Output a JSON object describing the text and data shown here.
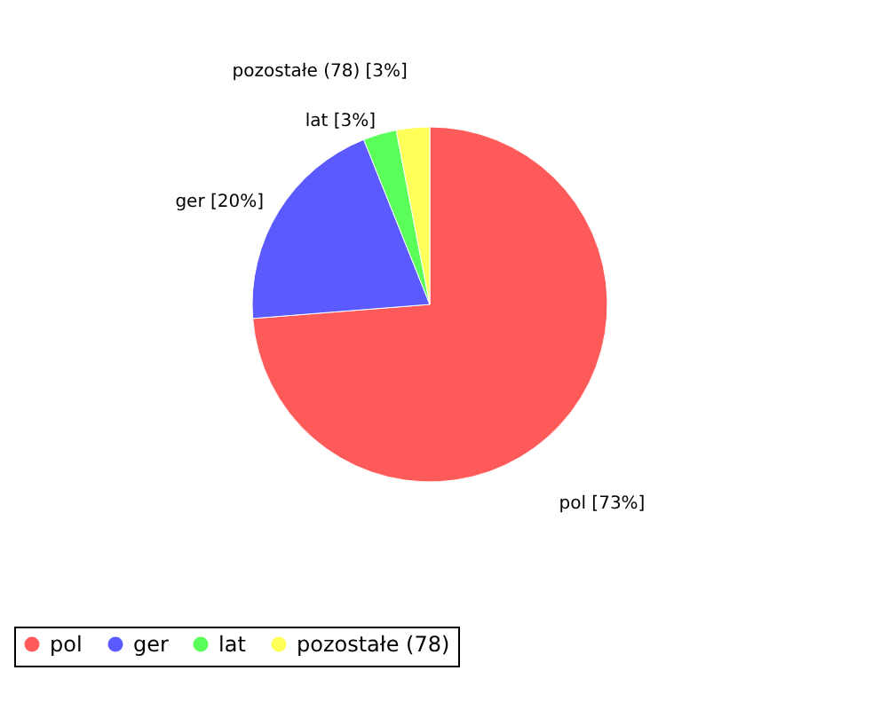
{
  "chart_data": {
    "type": "pie",
    "categories": [
      "pol",
      "ger",
      "lat",
      "pozostałe (78)"
    ],
    "values": [
      73,
      20,
      3,
      3
    ],
    "colors": [
      "#ff5a5a",
      "#5a5aff",
      "#5aff5a",
      "#ffff5a"
    ],
    "value_labels": [
      "pol [73%]",
      "ger [20%]",
      "lat [3%]",
      "pozostałe (78) [3%]"
    ],
    "legend": "bottom"
  }
}
